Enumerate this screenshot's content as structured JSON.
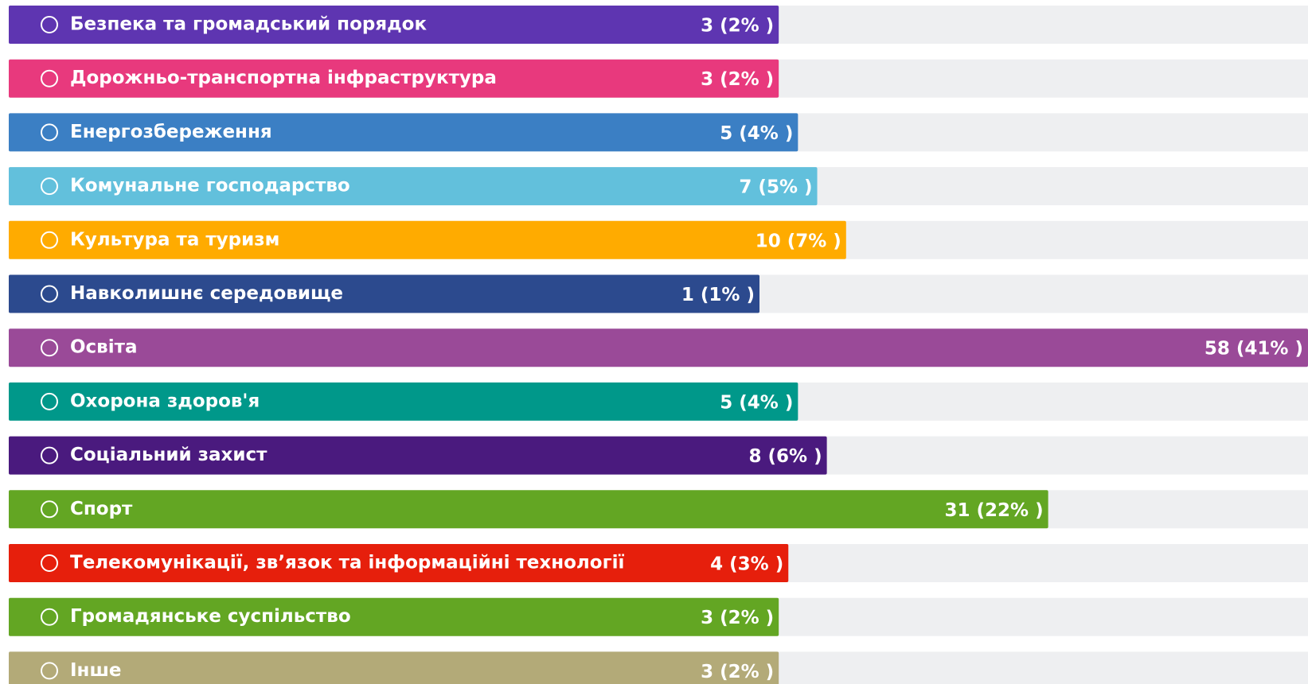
{
  "chart_data": {
    "type": "bar",
    "orientation": "horizontal",
    "categories": [
      "Безпека та громадський порядок",
      "Дорожньо-транспортна інфраструктура",
      "Енергозбереження",
      "Комунальне господарство",
      "Культура та туризм",
      "Навколишнє середовище",
      "Освіта",
      "Охорона здоров'я",
      "Соціальний захист",
      "Спорт",
      "Телекомунікації, зв’язок та інформаційні технології",
      "Громадянське суспільство",
      "Інше"
    ],
    "values": [
      3,
      3,
      5,
      7,
      10,
      1,
      58,
      5,
      8,
      31,
      4,
      3,
      3
    ],
    "value_labels": [
      "3 (2% )",
      "3 (2% )",
      "5 (4% )",
      "7 (5% )",
      "10 (7% )",
      "1 (1% )",
      "58 (41% )",
      "5 (4% )",
      "8 (6% )",
      "31 (22% )",
      "4 (3% )",
      "3 (2% )",
      "3 (2% )"
    ],
    "colors": [
      "#5e35b1",
      "#e8397d",
      "#3b7fc4",
      "#62c0dc",
      "#ffab00",
      "#2c4a8e",
      "#9a4a98",
      "#00988a",
      "#4a1a7e",
      "#63a623",
      "#e61f0c",
      "#63a623",
      "#b3aa78"
    ]
  }
}
